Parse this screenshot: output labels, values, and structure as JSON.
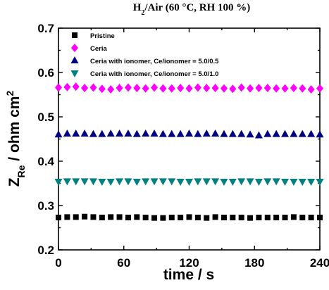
{
  "chart_data": {
    "type": "scatter",
    "title": "H2/Air (60 °C, RH 100 %)",
    "title_parts": {
      "pre": "H",
      "sub": "2",
      "post": "/Air (60 °C, RH 100 %)"
    },
    "xlabel": "time / s",
    "ylabel_parts": {
      "z": "Z",
      "sub": "Re",
      "unit": " / ohm cm",
      "sup": "2"
    },
    "xlim": [
      0,
      240
    ],
    "ylim": [
      0.2,
      0.7
    ],
    "xticks": [
      0,
      60,
      120,
      180,
      240
    ],
    "yticks": [
      0.2,
      0.3,
      0.4,
      0.5,
      0.6,
      0.7
    ],
    "x": [
      0,
      8,
      16,
      24,
      32,
      40,
      48,
      56,
      64,
      72,
      80,
      88,
      96,
      104,
      112,
      120,
      128,
      136,
      144,
      152,
      160,
      168,
      176,
      184,
      192,
      200,
      208,
      216,
      224,
      232,
      240
    ],
    "legend_position": "top-left",
    "series": [
      {
        "name": "Pristine",
        "marker": "square",
        "color": "#000000",
        "values": [
          0.273,
          0.274,
          0.274,
          0.275,
          0.274,
          0.273,
          0.274,
          0.274,
          0.273,
          0.274,
          0.273,
          0.272,
          0.272,
          0.273,
          0.273,
          0.274,
          0.273,
          0.272,
          0.274,
          0.273,
          0.273,
          0.273,
          0.272,
          0.273,
          0.273,
          0.273,
          0.273,
          0.274,
          0.273,
          0.273,
          0.273
        ]
      },
      {
        "name": "Ceria",
        "marker": "diamond",
        "color": "#ff00ff",
        "values": [
          0.566,
          0.567,
          0.568,
          0.565,
          0.566,
          0.563,
          0.562,
          0.565,
          0.566,
          0.565,
          0.564,
          0.566,
          0.564,
          0.564,
          0.565,
          0.564,
          0.566,
          0.565,
          0.565,
          0.564,
          0.563,
          0.566,
          0.564,
          0.565,
          0.565,
          0.564,
          0.564,
          0.565,
          0.564,
          0.562,
          0.564
        ]
      },
      {
        "name": "Ceria with ionomer, Ce/ionomer = 5.0/0.5",
        "marker": "triangle-up",
        "color": "#000080",
        "values": [
          0.46,
          0.462,
          0.462,
          0.462,
          0.461,
          0.461,
          0.462,
          0.462,
          0.462,
          0.461,
          0.462,
          0.462,
          0.461,
          0.461,
          0.461,
          0.462,
          0.461,
          0.462,
          0.462,
          0.461,
          0.461,
          0.461,
          0.46,
          0.458,
          0.461,
          0.461,
          0.461,
          0.461,
          0.461,
          0.461,
          0.46
        ]
      },
      {
        "name": "Ceria with ionomer, Ce/ionomer = 5.0/1.0",
        "marker": "triangle-down",
        "color": "#008080",
        "values": [
          0.354,
          0.355,
          0.355,
          0.355,
          0.355,
          0.354,
          0.354,
          0.355,
          0.355,
          0.354,
          0.355,
          0.355,
          0.355,
          0.355,
          0.354,
          0.354,
          0.355,
          0.355,
          0.355,
          0.354,
          0.354,
          0.355,
          0.355,
          0.354,
          0.355,
          0.355,
          0.354,
          0.354,
          0.354,
          0.354,
          0.354
        ]
      }
    ]
  }
}
